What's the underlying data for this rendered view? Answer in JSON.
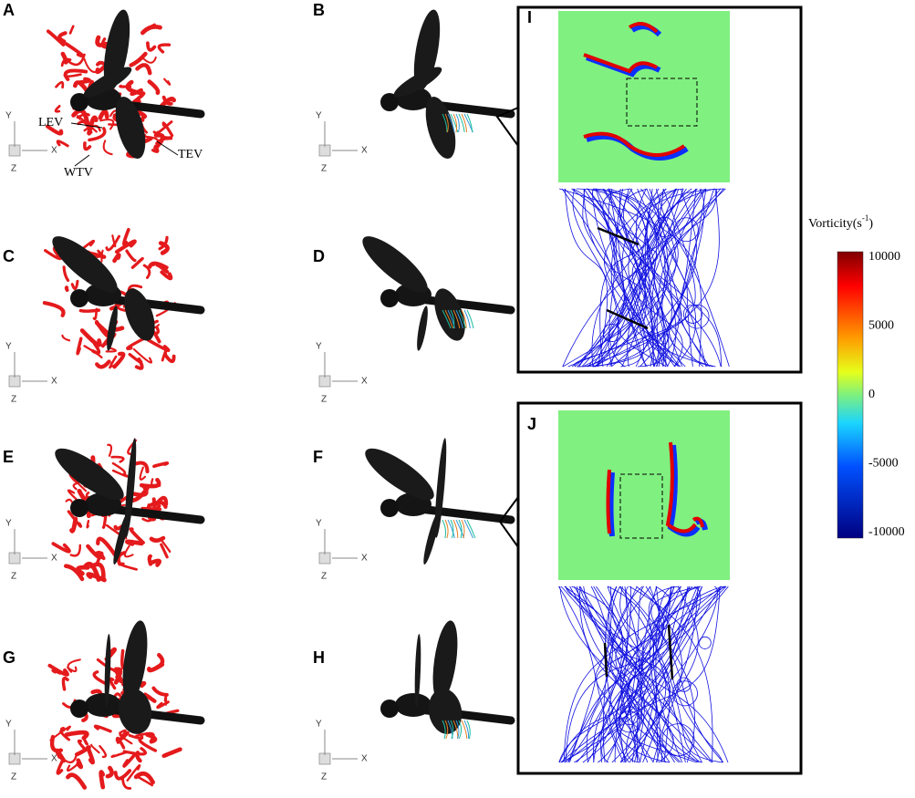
{
  "panels": [
    "A",
    "B",
    "C",
    "D",
    "E",
    "F",
    "G",
    "H",
    "I",
    "J"
  ],
  "annotations": [
    "LEV",
    "TEV",
    "WTV"
  ],
  "axes": {
    "y": "Y",
    "x": "X",
    "z": "Z"
  },
  "colorbar": {
    "title": "Vorticity(s",
    "sup": "-1",
    "close": ")",
    "ticks": [
      10000,
      5000,
      0,
      -5000,
      -10000
    ]
  }
}
